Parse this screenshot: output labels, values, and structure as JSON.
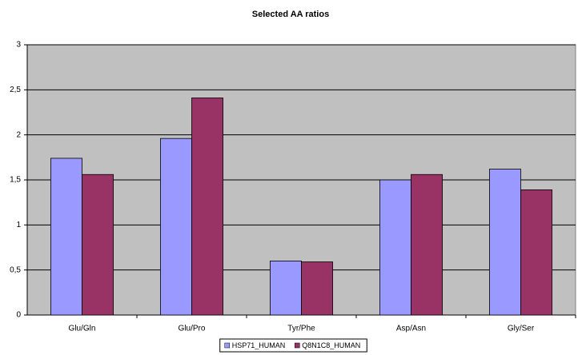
{
  "chart_data": {
    "type": "bar",
    "title": "Selected AA ratios",
    "categories": [
      "Glu/Gln",
      "Glu/Pro",
      "Tyr/Phe",
      "Asp/Asn",
      "Gly/Ser"
    ],
    "series": [
      {
        "name": "HSP71_HUMAN",
        "color": "#9999ff",
        "values": [
          1.74,
          1.96,
          0.6,
          1.5,
          1.62
        ]
      },
      {
        "name": "Q8N1C8_HUMAN",
        "color": "#993366",
        "values": [
          1.56,
          2.41,
          0.59,
          1.56,
          1.39
        ]
      }
    ],
    "ylim": [
      0,
      3
    ],
    "yticks": [
      0,
      {
        "value": 0.5,
        "label": "0,5"
      },
      1,
      {
        "value": 1.5,
        "label": "1,5"
      },
      2,
      {
        "value": 2.5,
        "label": "2,5"
      },
      3
    ],
    "grid": true,
    "legend": "bottom",
    "background": "#c0c0c0"
  }
}
